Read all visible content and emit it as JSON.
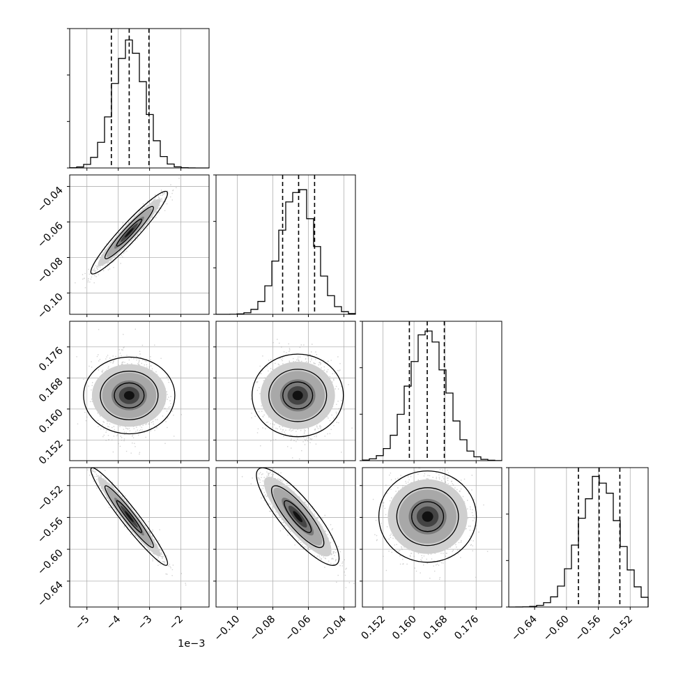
{
  "chart_data": {
    "type": "corner",
    "grid": true,
    "params": [
      {
        "mean": -3.65,
        "sd": 0.5,
        "range": [
          -5.55,
          -1.1
        ],
        "ticks": [
          -5,
          -4,
          -3,
          -2
        ],
        "tick_labels": [
          "−5",
          "−4",
          "−3",
          "−2"
        ],
        "quantiles": [
          -4.22,
          -3.65,
          -3.02
        ],
        "offset_label": "1e−3"
      },
      {
        "mean": -0.066,
        "sd": 0.0095,
        "range": [
          -0.112,
          -0.0335
        ],
        "ticks": [
          -0.1,
          -0.08,
          -0.06,
          -0.04
        ],
        "tick_labels": [
          "−0.10",
          "−0.08",
          "−0.06",
          "−0.04"
        ],
        "quantiles": [
          -0.0745,
          -0.0655,
          -0.0565
        ]
      },
      {
        "mean": 0.1635,
        "sd": 0.0048,
        "range": [
          0.1467,
          0.1826
        ],
        "ticks": [
          0.152,
          0.16,
          0.168,
          0.176
        ],
        "tick_labels": [
          "0.152",
          "0.160",
          "0.168",
          "0.176"
        ],
        "quantiles": [
          0.1588,
          0.1634,
          0.1678
        ]
      },
      {
        "mean": -0.559,
        "sd": 0.025,
        "range": [
          -0.6725,
          -0.4975
        ],
        "ticks": [
          -0.64,
          -0.6,
          -0.56,
          -0.52
        ],
        "tick_labels": [
          "−0.64",
          "−0.60",
          "−0.56",
          "−0.52"
        ],
        "quantiles": [
          -0.585,
          -0.559,
          -0.533
        ]
      }
    ],
    "correlations": [
      [
        1,
        0.95,
        0,
        -0.96
      ],
      [
        0.95,
        1,
        0,
        -0.85
      ],
      [
        0,
        0,
        1,
        0
      ],
      [
        -0.96,
        -0.85,
        0,
        1
      ]
    ],
    "histogram_peaks": [
      0.9,
      0.91,
      0.93,
      0.91
    ]
  }
}
